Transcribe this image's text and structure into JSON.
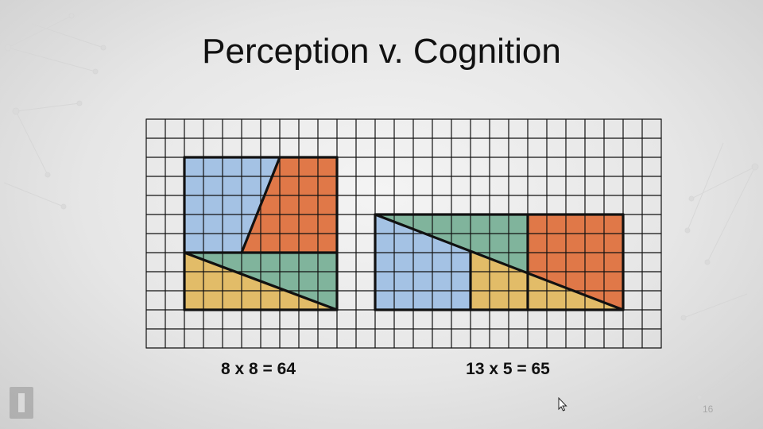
{
  "slide": {
    "title": "Perception v. Cognition",
    "slide_number": "16"
  },
  "captions": {
    "left": "8 x 8 = 64",
    "right": "13 x 5 = 65"
  },
  "colors": {
    "blue": "#a4c2e4",
    "orange": "#e07848",
    "green": "#80b49c",
    "yellow": "#e2bc68",
    "grid": "#111111"
  },
  "icons": {
    "logo": "illinois-logo-icon",
    "cursor": "mouse-pointer-icon"
  }
}
